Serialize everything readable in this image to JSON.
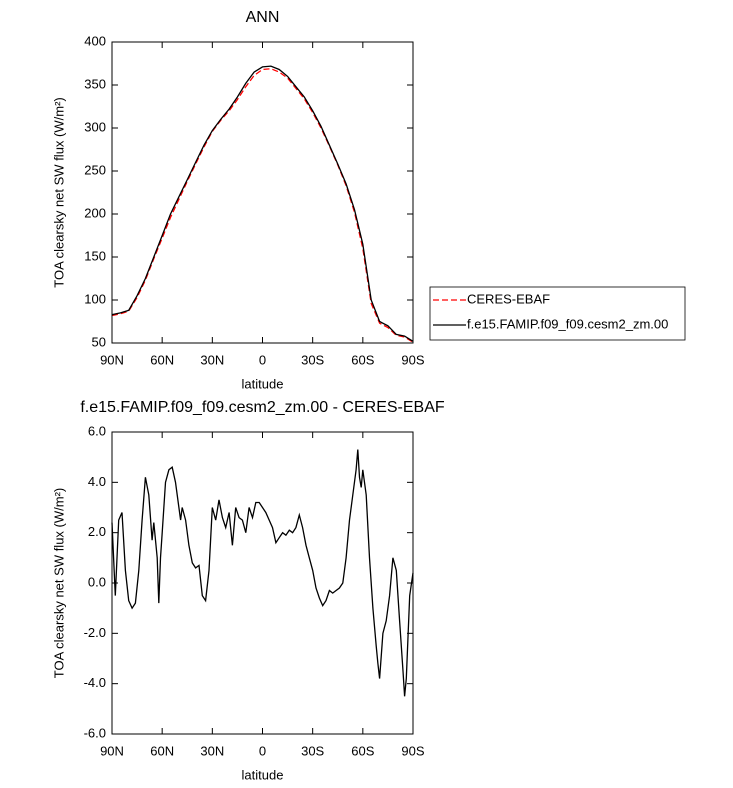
{
  "chart_data": [
    {
      "type": "line",
      "title": "ANN",
      "xlabel": "latitude",
      "ylabel": "TOA clearsky net SW flux (W/m²)",
      "x": [
        90,
        85,
        80,
        75,
        70,
        65,
        60,
        55,
        50,
        45,
        40,
        35,
        30,
        25,
        20,
        15,
        10,
        5,
        0,
        -5,
        -10,
        -15,
        -20,
        -25,
        -30,
        -35,
        -40,
        -45,
        -50,
        -55,
        -60,
        -65,
        -70,
        -75,
        -80,
        -85,
        -90
      ],
      "series": [
        {
          "name": "CERES-EBAF",
          "color": "#ff0000",
          "dashed": true,
          "values": [
            82,
            84,
            87,
            103,
            123,
            148,
            172,
            196,
            217,
            238,
            258,
            278,
            296,
            309,
            320,
            333,
            348,
            361,
            368,
            369,
            365,
            358,
            346,
            334,
            318,
            300,
            279,
            257,
            233,
            202,
            160,
            96,
            73,
            68,
            59,
            57,
            51
          ]
        },
        {
          "name": "f.e15.FAMIP.f09_f09.cesm2_zm.00",
          "color": "#000000",
          "dashed": false,
          "values": [
            83,
            85,
            88,
            105,
            125,
            150,
            175,
            200,
            220,
            240,
            260,
            280,
            297,
            310,
            322,
            336,
            352,
            365,
            371,
            372,
            368,
            360,
            348,
            336,
            320,
            302,
            280,
            258,
            235,
            205,
            165,
            100,
            75,
            70,
            60,
            58,
            52
          ]
        }
      ],
      "xlim": [
        90,
        -90
      ],
      "xticks": [
        {
          "value": 90,
          "label": "90N"
        },
        {
          "value": 60,
          "label": "60N"
        },
        {
          "value": 30,
          "label": "30N"
        },
        0,
        {
          "value": -30,
          "label": "30S"
        },
        {
          "value": -60,
          "label": "60S"
        },
        {
          "value": -90,
          "label": "90S"
        }
      ],
      "ylim": [
        50,
        400
      ],
      "yticks": [
        50,
        100,
        150,
        200,
        250,
        300,
        350,
        400
      ],
      "legend": "right"
    },
    {
      "type": "line",
      "title": "f.e15.FAMIP.f09_f09.cesm2_zm.00 - CERES-EBAF",
      "xlabel": "latitude",
      "ylabel": "TOA clearsky net SW flux (W/m²)",
      "color": "#000000",
      "x": [
        90,
        88,
        86,
        84,
        82,
        80,
        78,
        76,
        74,
        72,
        70,
        68,
        66,
        65,
        63,
        62,
        61,
        60,
        58,
        56,
        54,
        52,
        50,
        49,
        48,
        46,
        44,
        42,
        40,
        38,
        36,
        34,
        32,
        30,
        28,
        26,
        24,
        22,
        20,
        18,
        16,
        14,
        12,
        10,
        8,
        6,
        4,
        2,
        0,
        -2,
        -4,
        -6,
        -8,
        -10,
        -12,
        -14,
        -16,
        -18,
        -20,
        -22,
        -24,
        -26,
        -28,
        -30,
        -32,
        -34,
        -36,
        -38,
        -40,
        -42,
        -44,
        -46,
        -48,
        -50,
        -52,
        -54,
        -56,
        -57,
        -58,
        -59,
        -60,
        -62,
        -64,
        -66,
        -68,
        -69,
        -70,
        -72,
        -74,
        -76,
        -78,
        -80,
        -82,
        -84,
        -85,
        -86,
        -88,
        -90
      ],
      "values": [
        2.4,
        -0.5,
        2.5,
        2.8,
        0.5,
        -0.7,
        -1.0,
        -0.8,
        0.5,
        2.5,
        4.2,
        3.5,
        1.7,
        2.4,
        1.0,
        -0.8,
        1.0,
        2.0,
        4.0,
        4.5,
        4.6,
        4.0,
        3.0,
        2.5,
        3.0,
        2.5,
        1.5,
        0.8,
        0.6,
        0.7,
        -0.5,
        -0.7,
        0.5,
        3.0,
        2.5,
        3.3,
        2.6,
        2.2,
        2.8,
        1.5,
        3.0,
        2.6,
        2.5,
        2.0,
        3.0,
        2.6,
        3.2,
        3.2,
        3.0,
        2.8,
        2.5,
        2.2,
        1.6,
        1.8,
        2.0,
        1.9,
        2.1,
        2.0,
        2.2,
        2.7,
        2.2,
        1.5,
        1.0,
        0.5,
        -0.2,
        -0.6,
        -0.9,
        -0.7,
        -0.3,
        -0.4,
        -0.3,
        -0.2,
        0.0,
        1.0,
        2.5,
        3.5,
        4.5,
        5.3,
        4.2,
        3.8,
        4.5,
        3.5,
        1.0,
        -1.0,
        -2.5,
        -3.2,
        -3.8,
        -2.0,
        -1.5,
        -0.5,
        1.0,
        0.5,
        -1.5,
        -3.5,
        -4.5,
        -3.8,
        -0.5,
        0.4
      ],
      "xlim": [
        90,
        -90
      ],
      "xticks": [
        {
          "value": 90,
          "label": "90N"
        },
        {
          "value": 60,
          "label": "60N"
        },
        {
          "value": 30,
          "label": "30N"
        },
        0,
        {
          "value": -30,
          "label": "30S"
        },
        {
          "value": -60,
          "label": "60S"
        },
        {
          "value": -90,
          "label": "90S"
        }
      ],
      "ylim": [
        -6,
        6
      ],
      "yticks": [
        {
          "value": -6,
          "label": "-6.0"
        },
        {
          "value": -4,
          "label": "-4.0"
        },
        {
          "value": -2,
          "label": "-2.0"
        },
        {
          "value": 0,
          "label": "0.0"
        },
        {
          "value": 2,
          "label": "2.0"
        },
        {
          "value": 4,
          "label": "4.0"
        },
        {
          "value": 6,
          "label": "6.0"
        }
      ]
    }
  ]
}
